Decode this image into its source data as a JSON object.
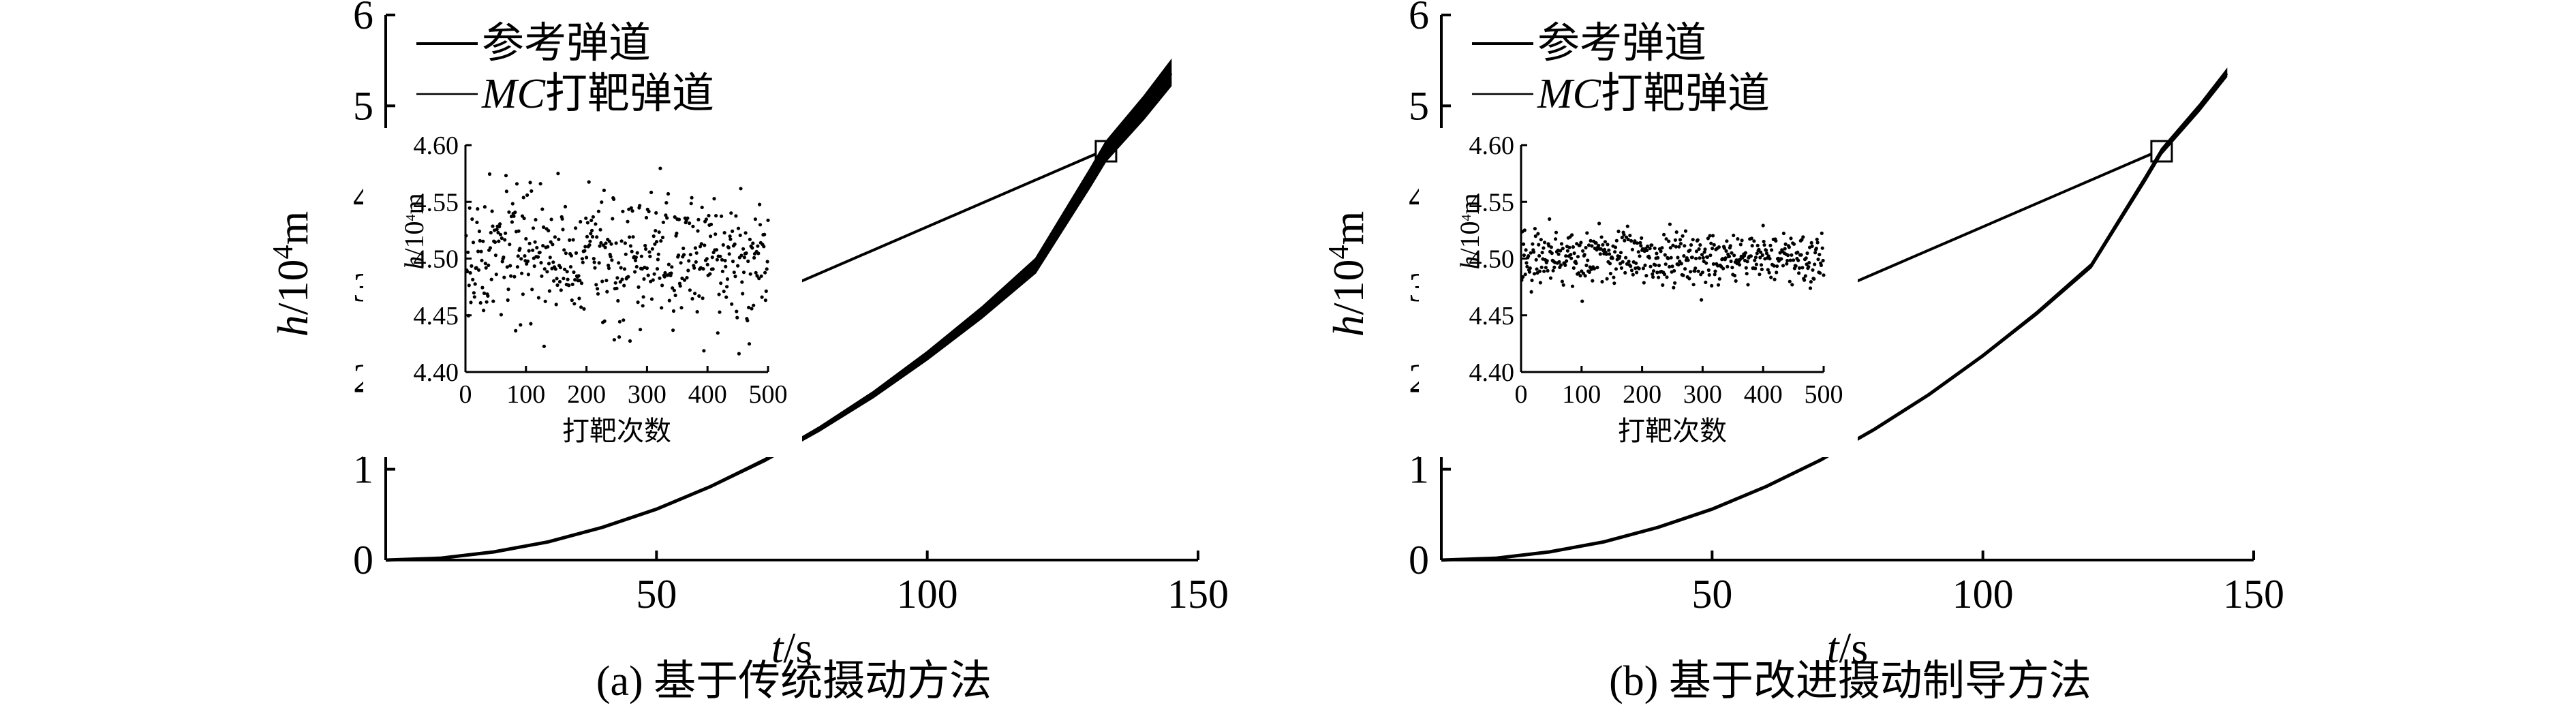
{
  "chart_data": [
    {
      "type": "line",
      "caption": "(a) 基于传统摄动方法",
      "xlabel_var": "t",
      "xlabel_unit": "/s",
      "ylabel_var": "h",
      "ylabel_unit_pre": "/10",
      "ylabel_exp": "4",
      "ylabel_unit_post": "m",
      "xlim": [
        0,
        150
      ],
      "ylim": [
        0,
        6
      ],
      "xticks": [
        "50",
        "100",
        "150"
      ],
      "xtick_values": [
        50,
        100,
        150
      ],
      "yticks": [
        "0",
        "1",
        "2",
        "3",
        "4",
        "5",
        "6"
      ],
      "ytick_values": [
        0,
        1,
        2,
        3,
        4,
        5,
        6
      ],
      "legend": [
        {
          "prefix": "",
          "name": "参考弹道"
        },
        {
          "prefix": "MC",
          "name": "打靶弹道"
        }
      ],
      "series": [
        {
          "name": "参考弹道",
          "x": [
            0,
            10,
            20,
            30,
            40,
            50,
            60,
            70,
            80,
            90,
            100,
            110,
            120,
            130,
            133,
            140,
            145
          ],
          "y": [
            0,
            0.02,
            0.09,
            0.2,
            0.36,
            0.56,
            0.81,
            1.1,
            1.44,
            1.82,
            2.25,
            2.72,
            3.24,
            4.2,
            4.5,
            4.98,
            5.36
          ]
        }
      ],
      "band_halfwidth_end": 0.14,
      "marker": {
        "x": 133,
        "y": 4.5
      },
      "inset": {
        "xlabel": "打靶次数",
        "ylabel_var": "h",
        "ylabel_unit_pre": "/10",
        "ylabel_exp": "4",
        "ylabel_unit_post": "m",
        "xlim": [
          0,
          500
        ],
        "ylim": [
          4.4,
          4.6
        ],
        "xticks": [
          "0",
          "100",
          "200",
          "300",
          "400",
          "500"
        ],
        "xtick_values": [
          0,
          100,
          200,
          300,
          400,
          500
        ],
        "yticks": [
          "4.40",
          "4.45",
          "4.50",
          "4.55",
          "4.60"
        ],
        "ytick_values": [
          4.4,
          4.45,
          4.5,
          4.55,
          4.6
        ],
        "scatter_n": 500,
        "scatter_center": 4.5,
        "scatter_std": 0.028,
        "scatter_seed": 17
      }
    },
    {
      "type": "line",
      "caption": "(b) 基于改进摄动制导方法",
      "xlabel_var": "t",
      "xlabel_unit": "/s",
      "ylabel_var": "h",
      "ylabel_unit_pre": "/10",
      "ylabel_exp": "4",
      "ylabel_unit_post": "m",
      "xlim": [
        0,
        150
      ],
      "ylim": [
        0,
        6
      ],
      "xticks": [
        "50",
        "100",
        "150"
      ],
      "xtick_values": [
        50,
        100,
        150
      ],
      "yticks": [
        "0",
        "1",
        "2",
        "3",
        "4",
        "5",
        "6"
      ],
      "ytick_values": [
        0,
        1,
        2,
        3,
        4,
        5,
        6
      ],
      "legend": [
        {
          "prefix": "",
          "name": "参考弹道"
        },
        {
          "prefix": "MC",
          "name": "打靶弹道"
        }
      ],
      "series": [
        {
          "name": "参考弹道",
          "x": [
            0,
            10,
            20,
            30,
            40,
            50,
            60,
            70,
            80,
            90,
            100,
            110,
            120,
            130,
            133,
            140,
            145
          ],
          "y": [
            0,
            0.02,
            0.09,
            0.2,
            0.36,
            0.56,
            0.81,
            1.1,
            1.44,
            1.82,
            2.25,
            2.72,
            3.24,
            4.2,
            4.5,
            4.98,
            5.36
          ]
        }
      ],
      "band_halfwidth_end": 0.04,
      "marker": {
        "x": 133,
        "y": 4.5
      },
      "inset": {
        "xlabel": "打靶次数",
        "ylabel_var": "h",
        "ylabel_unit_pre": "/10",
        "ylabel_exp": "4",
        "ylabel_unit_post": "m",
        "xlim": [
          0,
          500
        ],
        "ylim": [
          4.4,
          4.6
        ],
        "xticks": [
          "0",
          "100",
          "200",
          "300",
          "400",
          "500"
        ],
        "xtick_values": [
          0,
          100,
          200,
          300,
          400,
          500
        ],
        "yticks": [
          "4.40",
          "4.45",
          "4.50",
          "4.55",
          "4.60"
        ],
        "ytick_values": [
          4.4,
          4.45,
          4.5,
          4.55,
          4.6
        ],
        "scatter_n": 500,
        "scatter_center": 4.5,
        "scatter_std": 0.012,
        "scatter_seed": 91
      }
    }
  ]
}
